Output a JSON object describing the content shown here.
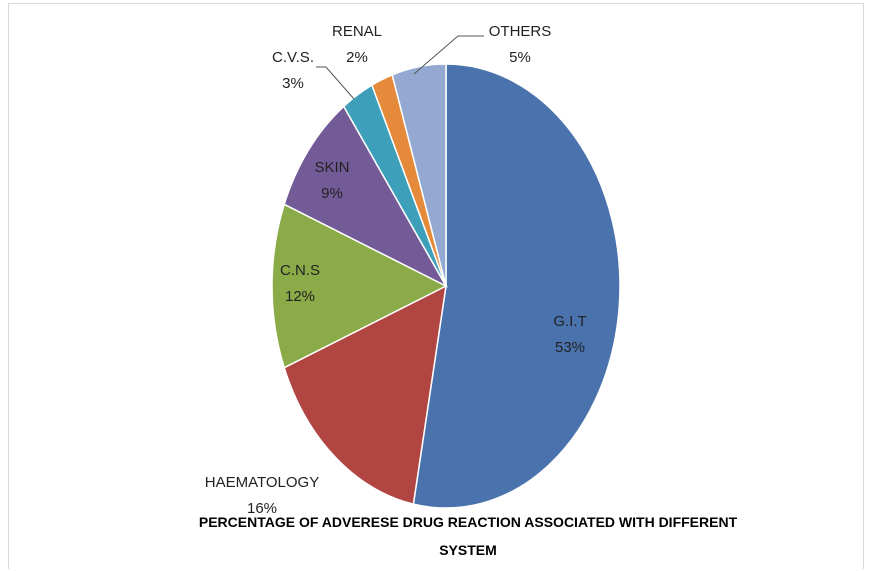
{
  "chart_data": {
    "type": "pie",
    "title_lines": [
      "PERCENTAGE OF ADVERESE DRUG REACTION ASSOCIATED WITH DIFFERENT",
      "SYSTEM"
    ],
    "slices": [
      {
        "label": "G.I.T",
        "value_label": "53%",
        "value": 53,
        "color": "#4a72ad"
      },
      {
        "label": "HAEMATOLOGY",
        "value_label": "16%",
        "value": 16,
        "color": "#b04542"
      },
      {
        "label": "C.N.S",
        "value_label": "12%",
        "value": 12,
        "color": "#8aab48"
      },
      {
        "label": "SKIN",
        "value_label": "9%",
        "value": 9,
        "color": "#735b97"
      },
      {
        "label": "C.V.S.",
        "value_label": "3%",
        "value": 3,
        "color": "#3e9fba"
      },
      {
        "label": "RENAL",
        "value_label": "2%",
        "value": 2,
        "color": "#e5893b"
      },
      {
        "label": "OTHERS",
        "value_label": "5%",
        "value": 5,
        "color": "#93a9d2"
      }
    ],
    "legend": "none"
  }
}
